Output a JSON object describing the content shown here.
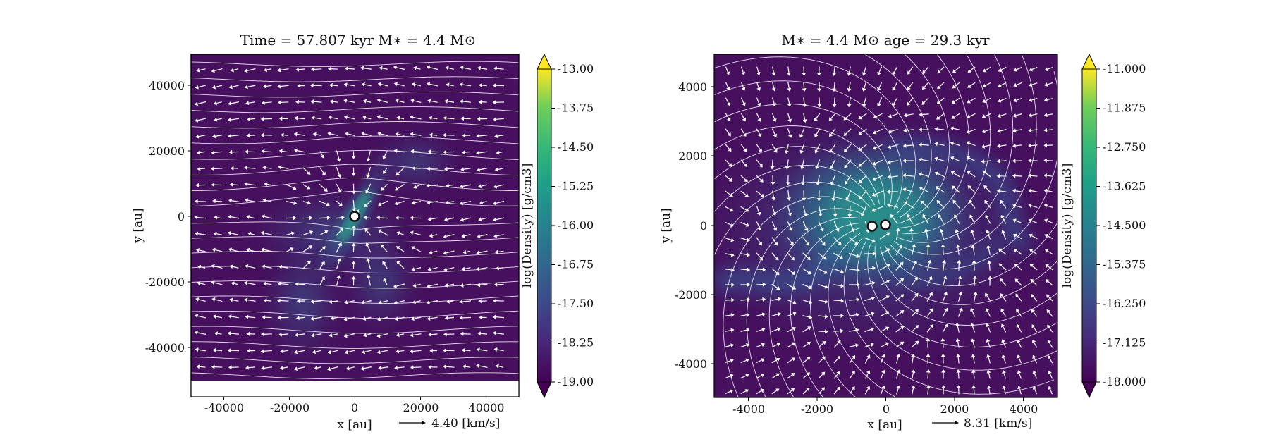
{
  "chart_data": [
    {
      "type": "heatmap",
      "title": "Time = 57.807 kyr    M$_*$ = 4.4 M$_\\odot$",
      "title_display": "Time = 57.807 kyr    M∗ = 4.4 M⊙",
      "xlabel": "x [au]",
      "ylabel": "y [au]",
      "xlim": [
        -50000,
        50000
      ],
      "ylim": [
        -55000,
        50000
      ],
      "data_ylim_bottom": -50000,
      "xticks": [
        -40000,
        -20000,
        0,
        20000,
        40000
      ],
      "xtick_labels": [
        "-40000",
        "-20000",
        "0",
        "20000",
        "40000"
      ],
      "yticks": [
        40000,
        20000,
        0,
        -20000,
        -40000
      ],
      "ytick_labels": [
        "40000",
        "20000",
        "0",
        "-20000",
        "-40000"
      ],
      "colorbar": {
        "label": "log(Density) [g/cm3]",
        "range": [
          -19.0,
          -13.0
        ],
        "ticks": [
          -13.0,
          -13.75,
          -14.5,
          -15.25,
          -16.0,
          -16.75,
          -17.5,
          -18.25,
          -19.0
        ],
        "tick_labels": [
          "-13.00",
          "-13.75",
          "-14.50",
          "-15.25",
          "-16.00",
          "-16.75",
          "-17.50",
          "-18.25",
          "-19.00"
        ],
        "colormap": "viridis",
        "extend": "both"
      },
      "velocity_key": {
        "label": "4.40 [km/s]",
        "value": 4.4
      },
      "stars": [
        {
          "x": 0,
          "y": 0
        }
      ],
      "structure": "filament",
      "filament_angle_deg": 60,
      "flow": "uniform-westward"
    },
    {
      "type": "heatmap",
      "title": "M$_*$ = 4.4 M$_\\odot$        age = 29.3 kyr",
      "title_display": "M∗ = 4.4 M⊙          age = 29.3 kyr",
      "xlabel": "x [au]",
      "ylabel": "y [au]",
      "xlim": [
        -5000,
        5000
      ],
      "ylim": [
        -5000,
        5000
      ],
      "xticks": [
        -4000,
        -2000,
        0,
        2000,
        4000
      ],
      "xtick_labels": [
        "-4000",
        "-2000",
        "0",
        "2000",
        "4000"
      ],
      "yticks": [
        4000,
        2000,
        0,
        -2000,
        -4000
      ],
      "ytick_labels": [
        "4000",
        "2000",
        "0",
        "-2000",
        "-4000"
      ],
      "colorbar": {
        "label": "log(Density) [g/cm3]",
        "range": [
          -18.0,
          -11.0
        ],
        "ticks": [
          -11.0,
          -11.875,
          -12.75,
          -13.625,
          -14.5,
          -15.375,
          -16.25,
          -17.125,
          -18.0
        ],
        "tick_labels": [
          "-11.000",
          "-11.875",
          "-12.750",
          "-13.625",
          "-14.500",
          "-15.375",
          "-16.250",
          "-17.125",
          "-18.000"
        ],
        "colormap": "viridis",
        "extend": "both"
      },
      "velocity_key": {
        "label": "8.31 [km/s]",
        "value": 8.31
      },
      "stars": [
        {
          "x": -400,
          "y": -50
        },
        {
          "x": 0,
          "y": 0
        }
      ],
      "structure": "spiral-disk",
      "flow": "infall-rotation"
    }
  ]
}
